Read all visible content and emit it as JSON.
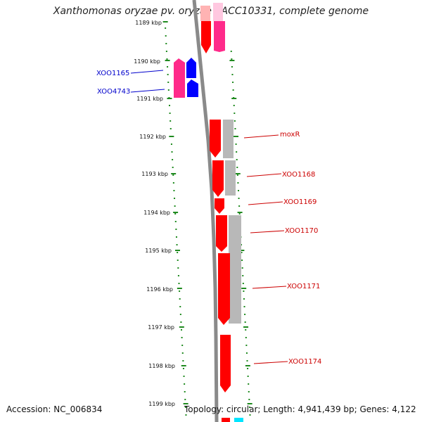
{
  "title": "Xanthomonas oryzae pv. oryzae KACC10331, complete genome",
  "footer": {
    "accession_text": "Accession: NC_006834",
    "topology_text": "Topology: circular; Length: 4,941,439 bp; Genes: 4,122"
  },
  "colors": {
    "backbone": "#8a8a8a",
    "ticks": "#1f8a1f",
    "forward_gene": "#ff0000",
    "reverse_gene": "#ff2a8a",
    "gray_feature": "#b8b8b8",
    "blue_gene": "#0000ff",
    "label_forward": "#cc0000",
    "label_reverse": "#0000cc"
  },
  "scale_labels": [
    "1189 kbp",
    "1190 kbp",
    "1191 kbp",
    "1192 kbp",
    "1193 kbp",
    "1194 kbp",
    "1195 kbp",
    "1196 kbp",
    "1197 kbp",
    "1198 kbp",
    "1199 kbp"
  ],
  "gene_labels": [
    "XOO1165",
    "XOO4743",
    "moxR",
    "XOO1168",
    "XOO1169",
    "XOO1170",
    "XOO1171",
    "XOO1174"
  ]
}
